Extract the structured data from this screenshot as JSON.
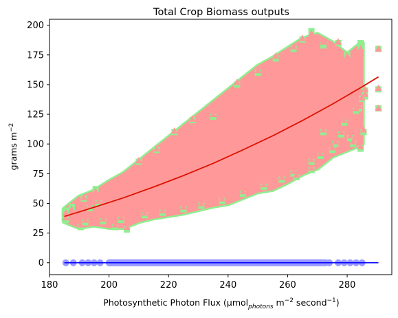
{
  "chart_data": {
    "type": "scatter",
    "title": "Total Crop Biomass outputs",
    "xlabel": {
      "prefix": "Photosynthetic Photon Flux (μmol",
      "sub": "photons",
      "mid": " m",
      "sup1": "−2",
      "mid2": " second",
      "sup2": "−1",
      "suffix": ")"
    },
    "ylabel": {
      "main": "grams m",
      "sup": "−2"
    },
    "xlim": [
      180,
      295
    ],
    "ylim": [
      -10,
      205
    ],
    "xticks": [
      180,
      200,
      220,
      240,
      260,
      280
    ],
    "yticks": [
      0,
      25,
      50,
      75,
      100,
      125,
      150,
      175,
      200
    ],
    "grid": false,
    "colors": {
      "green_markers": "#90ee90",
      "pink_markers": "#ff9999",
      "blue_markers": "#9999ff",
      "trend_line": "#dd1100",
      "zero_line": "#0000ff"
    },
    "cloud_envelope": [
      {
        "x": 185,
        "low": 35,
        "high": 45
      },
      {
        "x": 190,
        "low": 30,
        "high": 55
      },
      {
        "x": 195,
        "low": 32,
        "high": 60
      },
      {
        "x": 200,
        "low": 30,
        "high": 68
      },
      {
        "x": 205,
        "low": 30,
        "high": 75
      },
      {
        "x": 210,
        "low": 35,
        "high": 85
      },
      {
        "x": 215,
        "low": 38,
        "high": 95
      },
      {
        "x": 220,
        "low": 40,
        "high": 105
      },
      {
        "x": 225,
        "low": 42,
        "high": 115
      },
      {
        "x": 230,
        "low": 45,
        "high": 125
      },
      {
        "x": 235,
        "low": 48,
        "high": 135
      },
      {
        "x": 240,
        "low": 50,
        "high": 145
      },
      {
        "x": 245,
        "low": 55,
        "high": 155
      },
      {
        "x": 250,
        "low": 60,
        "high": 165
      },
      {
        "x": 255,
        "low": 62,
        "high": 172
      },
      {
        "x": 260,
        "low": 68,
        "high": 180
      },
      {
        "x": 265,
        "low": 75,
        "high": 188
      },
      {
        "x": 270,
        "low": 80,
        "high": 192
      },
      {
        "x": 275,
        "low": 90,
        "high": 185
      },
      {
        "x": 280,
        "low": 95,
        "high": 175
      },
      {
        "x": 285,
        "low": 100,
        "high": 185
      }
    ],
    "series": [
      {
        "marker": "square",
        "color": "#90ee90",
        "points": [
          [
            185.5,
            44
          ],
          [
            185.5,
            36
          ],
          [
            187.5,
            47
          ],
          [
            190.5,
            30
          ],
          [
            191.5,
            54
          ],
          [
            193.5,
            46
          ],
          [
            195.5,
            62
          ],
          [
            196.5,
            50
          ],
          [
            202,
            30
          ],
          [
            206,
            28
          ],
          [
            210,
            85
          ],
          [
            216,
            95
          ],
          [
            222,
            110
          ],
          [
            228,
            120
          ],
          [
            235,
            123
          ],
          [
            243,
            150
          ],
          [
            250,
            160
          ],
          [
            256,
            172
          ],
          [
            262,
            180
          ],
          [
            265,
            188
          ],
          [
            268,
            195
          ],
          [
            272,
            183
          ],
          [
            277,
            185
          ],
          [
            280,
            175
          ],
          [
            284.5,
            185
          ],
          [
            284.5,
            182
          ],
          [
            284,
            130
          ],
          [
            283,
            128
          ],
          [
            286,
            145
          ],
          [
            286,
            140
          ],
          [
            285,
            138
          ],
          [
            279,
            118
          ],
          [
            276,
            100
          ],
          [
            271,
            90
          ],
          [
            268,
            85
          ],
          [
            262,
            75
          ],
          [
            258,
            70
          ],
          [
            252,
            64
          ],
          [
            245,
            58
          ],
          [
            238,
            52
          ],
          [
            231,
            48
          ],
          [
            225,
            45
          ],
          [
            218,
            42
          ],
          [
            212,
            40
          ],
          [
            204,
            36
          ],
          [
            198,
            35
          ],
          [
            192,
            34
          ],
          [
            272,
            110
          ],
          [
            275,
            95
          ],
          [
            278,
            108
          ],
          [
            281,
            105
          ],
          [
            282,
            100
          ],
          [
            285.5,
            110
          ],
          [
            284.5,
            96
          ],
          [
            268,
            78
          ],
          [
            263,
            72
          ],
          [
            290.5,
            180
          ],
          [
            290.5,
            146
          ],
          [
            290.5,
            130
          ]
        ]
      },
      {
        "marker": "triangle",
        "color": "#ff9999",
        "points": [
          [
            185.5,
            42
          ],
          [
            185.5,
            38
          ],
          [
            187.5,
            45
          ],
          [
            190.5,
            32
          ],
          [
            191.5,
            55
          ],
          [
            193.5,
            48
          ],
          [
            195.5,
            60
          ],
          [
            196.5,
            52
          ],
          [
            202,
            32
          ],
          [
            206,
            30
          ],
          [
            210,
            86
          ],
          [
            216,
            96
          ],
          [
            222,
            111
          ],
          [
            228,
            121
          ],
          [
            235,
            125
          ],
          [
            243,
            152
          ],
          [
            250,
            162
          ],
          [
            256,
            174
          ],
          [
            262,
            182
          ],
          [
            265,
            189
          ],
          [
            268,
            193
          ],
          [
            272,
            186
          ],
          [
            277,
            186
          ],
          [
            280,
            174
          ],
          [
            284.5,
            180
          ],
          [
            284.5,
            176
          ],
          [
            284,
            132
          ],
          [
            283,
            130
          ],
          [
            286,
            146
          ],
          [
            286,
            142
          ],
          [
            285,
            139
          ],
          [
            279,
            120
          ],
          [
            276,
            102
          ],
          [
            271,
            92
          ],
          [
            268,
            87
          ],
          [
            262,
            77
          ],
          [
            258,
            72
          ],
          [
            252,
            66
          ],
          [
            245,
            60
          ],
          [
            238,
            54
          ],
          [
            231,
            50
          ],
          [
            225,
            47
          ],
          [
            218,
            44
          ],
          [
            212,
            42
          ],
          [
            204,
            38
          ],
          [
            198,
            37
          ],
          [
            192,
            36
          ],
          [
            272,
            112
          ],
          [
            275,
            97
          ],
          [
            278,
            110
          ],
          [
            281,
            107
          ],
          [
            282,
            102
          ],
          [
            285.5,
            112
          ],
          [
            284.5,
            98
          ],
          [
            268,
            80
          ],
          [
            263,
            74
          ],
          [
            290.5,
            180
          ],
          [
            290.5,
            147
          ],
          [
            290.5,
            130
          ]
        ]
      },
      {
        "marker": "circle",
        "color": "#9999ff",
        "points": [
          [
            185.5,
            0
          ],
          [
            188,
            0
          ],
          [
            191,
            0
          ],
          [
            193,
            0
          ],
          [
            195,
            0
          ],
          [
            197,
            0
          ],
          [
            200,
            0
          ],
          [
            205,
            0
          ],
          [
            210,
            0
          ],
          [
            215,
            0
          ],
          [
            220,
            0
          ],
          [
            225,
            0
          ],
          [
            230,
            0
          ],
          [
            235,
            0
          ],
          [
            240,
            0
          ],
          [
            245,
            0
          ],
          [
            250,
            0
          ],
          [
            255,
            0
          ],
          [
            260,
            0
          ],
          [
            265,
            0
          ],
          [
            270,
            0
          ],
          [
            274,
            0
          ],
          [
            277,
            0
          ],
          [
            279,
            0
          ],
          [
            281,
            0
          ],
          [
            283,
            0
          ],
          [
            285,
            0
          ]
        ]
      }
    ],
    "fit_line": {
      "color": "#dd1100",
      "x": [
        185,
        195,
        205,
        215,
        225,
        235,
        245,
        255,
        265,
        275,
        285,
        290.5
      ],
      "y": [
        39,
        46.7,
        54.8,
        63.8,
        73.4,
        83.7,
        95.1,
        106.9,
        119.8,
        133.5,
        148.1,
        156.5
      ]
    },
    "zero_line": {
      "color": "#0000ff",
      "x": [
        185,
        290.5
      ],
      "y": [
        0,
        0
      ]
    }
  }
}
